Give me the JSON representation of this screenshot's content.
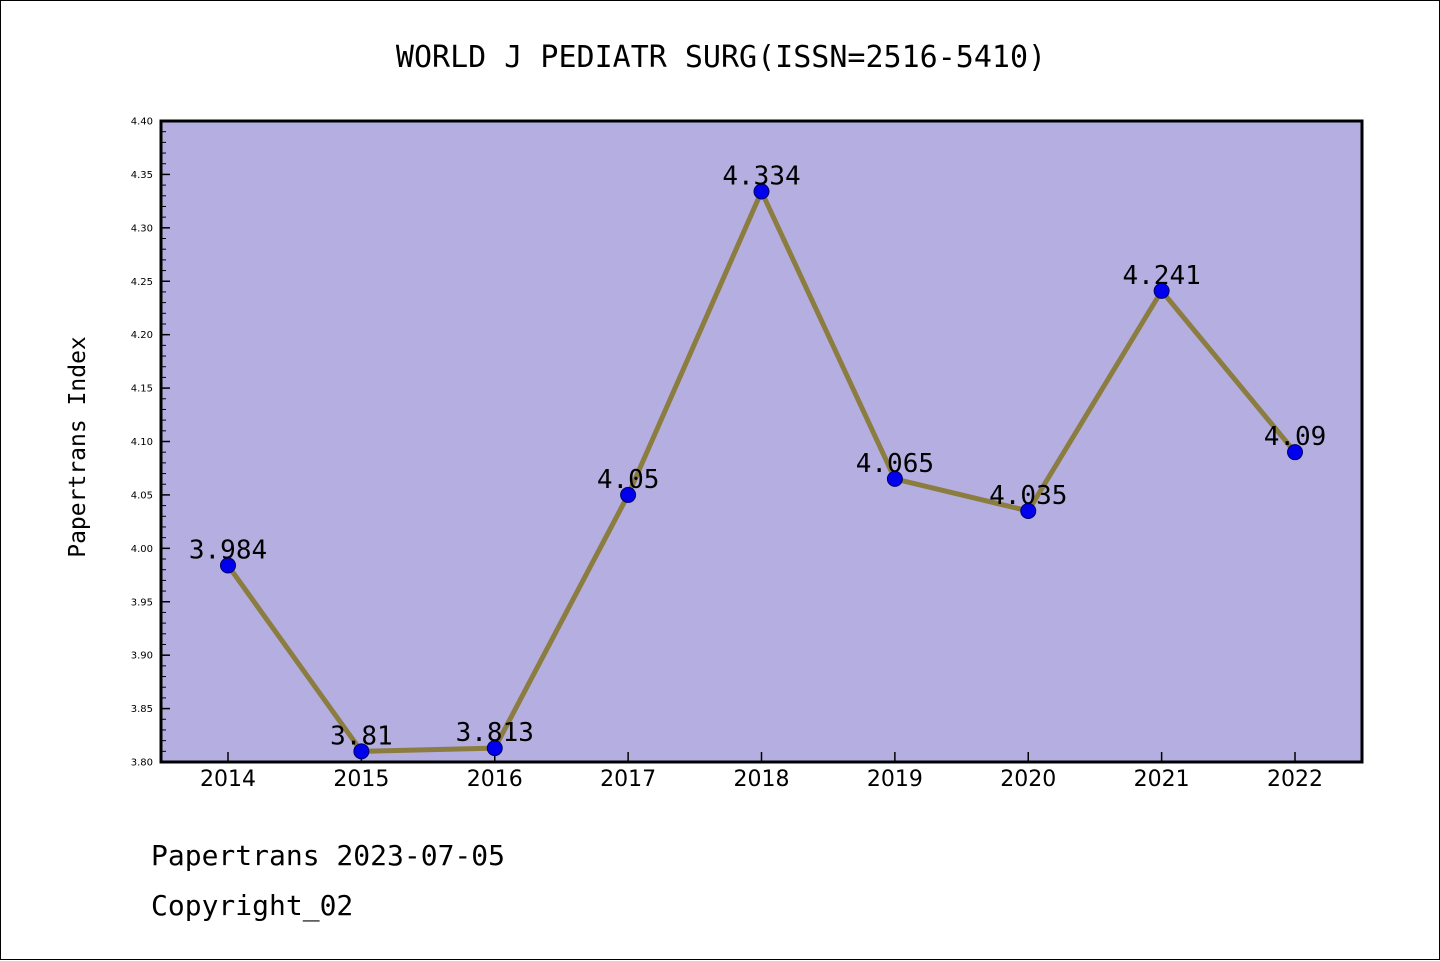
{
  "footer": {
    "line1": "Papertrans 2023-07-05",
    "line2": "Copyright_02"
  },
  "chart_data": {
    "type": "line",
    "title": "WORLD J PEDIATR SURG(ISSN=2516-5410)",
    "xlabel": "",
    "ylabel": "Papertrans Index",
    "categories": [
      "2014",
      "2015",
      "2016",
      "2017",
      "2018",
      "2019",
      "2020",
      "2021",
      "2022"
    ],
    "values": [
      3.984,
      3.81,
      3.813,
      4.05,
      4.334,
      4.065,
      4.035,
      4.241,
      4.09
    ],
    "data_labels": [
      "3.984",
      "3.81",
      "3.813",
      "4.05",
      "4.334",
      "4.065",
      "4.035",
      "4.241",
      "4.09"
    ],
    "ylim": [
      3.8,
      4.4
    ],
    "yticks": [
      "3.80",
      "3.85",
      "3.90",
      "3.95",
      "4.00",
      "4.05",
      "4.10",
      "4.15",
      "4.20",
      "4.25",
      "4.30",
      "4.35",
      "4.40"
    ],
    "grid": false,
    "legend": "none",
    "colors": {
      "plot_background": "#b5aee1",
      "line": "#8b7d3f",
      "marker": "#0000ee",
      "marker_edge": "#000066"
    }
  }
}
